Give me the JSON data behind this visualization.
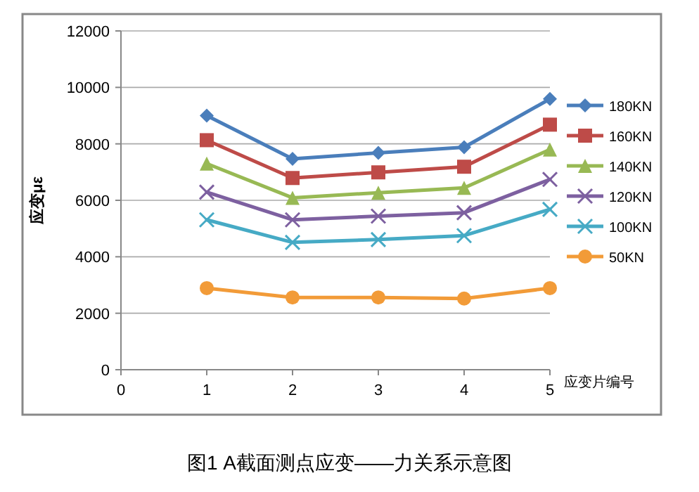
{
  "chart_data": {
    "type": "line",
    "title": "图1 A截面测点应变——力关系示意图",
    "xlabel": "应变片编号",
    "ylabel": "应变με",
    "x": [
      1,
      2,
      3,
      4,
      5
    ],
    "xlim": [
      0,
      5
    ],
    "xticks": [
      0,
      1,
      2,
      3,
      4,
      5
    ],
    "ylim": [
      0,
      12000
    ],
    "yticks": [
      0,
      2000,
      4000,
      6000,
      8000,
      10000,
      12000
    ],
    "grid": "y",
    "legend": "right",
    "series": [
      {
        "name": "180KN",
        "color": "#4a7ebb",
        "marker": "diamond",
        "values": [
          9000,
          7470,
          7680,
          7880,
          9590
        ]
      },
      {
        "name": "160KN",
        "color": "#be4b48",
        "marker": "square",
        "values": [
          8130,
          6790,
          6990,
          7190,
          8680
        ]
      },
      {
        "name": "140KN",
        "color": "#98b954",
        "marker": "triangle",
        "values": [
          7300,
          6090,
          6270,
          6440,
          7800
        ]
      },
      {
        "name": "120KN",
        "color": "#7d60a0",
        "marker": "cross",
        "values": [
          6290,
          5310,
          5440,
          5560,
          6740
        ]
      },
      {
        "name": "100KN",
        "color": "#46aac5",
        "marker": "cross",
        "values": [
          5310,
          4510,
          4610,
          4750,
          5680
        ]
      },
      {
        "name": "50KN",
        "color": "#f29b38",
        "marker": "circle",
        "values": [
          2890,
          2560,
          2560,
          2520,
          2890
        ]
      }
    ]
  }
}
